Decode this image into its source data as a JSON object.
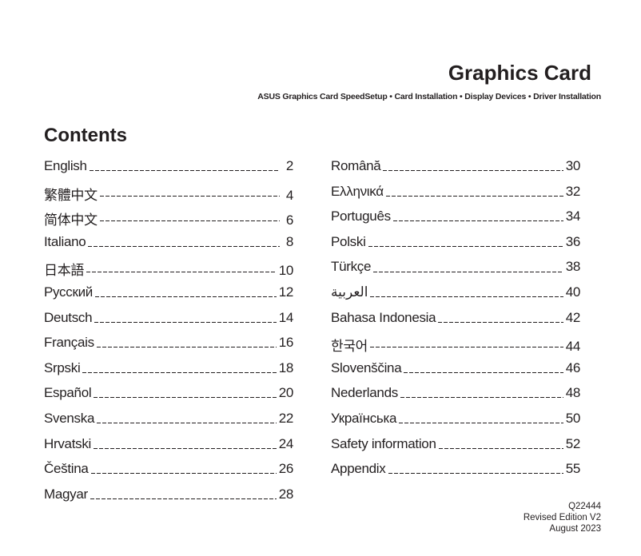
{
  "header": {
    "title": "Graphics Card",
    "subtitle": "ASUS Graphics Card SpeedSetup • Card Installation • Display Devices • Driver Installation"
  },
  "contents_heading": "Contents",
  "left_entries": [
    {
      "label": "English",
      "page": "2"
    },
    {
      "label": "繁體中文",
      "page": "4"
    },
    {
      "label": "简体中文",
      "page": "6"
    },
    {
      "label": "Italiano",
      "page": "8"
    },
    {
      "label": "日本語",
      "page": "10"
    },
    {
      "label": "Русский",
      "page": "12"
    },
    {
      "label": "Deutsch",
      "page": "14"
    },
    {
      "label": "Français",
      "page": "16"
    },
    {
      "label": "Srpski",
      "page": "18"
    },
    {
      "label": "Español",
      "page": "20"
    },
    {
      "label": "Svenska",
      "page": "22"
    },
    {
      "label": "Hrvatski",
      "page": "24"
    },
    {
      "label": "Čeština",
      "page": "26"
    },
    {
      "label": "Magyar",
      "page": "28"
    }
  ],
  "right_entries": [
    {
      "label": "Română",
      "page": "30"
    },
    {
      "label": "Ελληνικά",
      "page": "32"
    },
    {
      "label": "Português",
      "page": "34"
    },
    {
      "label": "Polski",
      "page": "36"
    },
    {
      "label": "Türkçe",
      "page": "38"
    },
    {
      "label": "العربية",
      "page": "40"
    },
    {
      "label": "Bahasa Indonesia",
      "page": "42"
    },
    {
      "label": "한국어",
      "page": "44"
    },
    {
      "label": "Slovenščina",
      "page": "46"
    },
    {
      "label": "Nederlands",
      "page": "48"
    },
    {
      "label": "Українська",
      "page": "50"
    },
    {
      "label": "Safety information",
      "page": "52"
    },
    {
      "label": "Appendix",
      "page": "55"
    }
  ],
  "footer": {
    "code": "Q22444",
    "edition": "Revised Edition V2",
    "date": "August 2023"
  }
}
